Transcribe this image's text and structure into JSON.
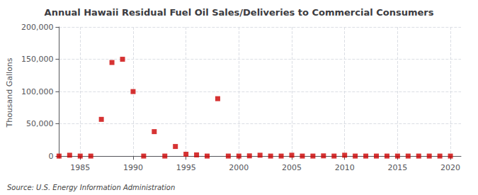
{
  "chart_data": {
    "type": "scatter",
    "title": "Annual Hawaii Residual Fuel Oil Sales/Deliveries to Commercial Consumers",
    "ylabel": "Thousand Gallons",
    "annotation": "Source: U.S. Energy Information Administration",
    "x": [
      1983,
      1984,
      1985,
      1986,
      1987,
      1988,
      1989,
      1990,
      1991,
      1992,
      1993,
      1994,
      1995,
      1996,
      1997,
      1998,
      1999,
      2000,
      2001,
      2002,
      2003,
      2004,
      2005,
      2006,
      2007,
      2008,
      2009,
      2010,
      2011,
      2012,
      2013,
      2014,
      2015,
      2016,
      2017,
      2018,
      2019,
      2020
    ],
    "values": [
      200,
      1500,
      200,
      200,
      57000,
      145000,
      150000,
      100000,
      200,
      38000,
      200,
      15000,
      3000,
      2000,
      200,
      89000,
      200,
      200,
      500,
      1500,
      200,
      200,
      1500,
      200,
      200,
      500,
      200,
      1500,
      200,
      200,
      200,
      200,
      200,
      200,
      200,
      200,
      200,
      200
    ],
    "color": "#cc0000",
    "marker": "square",
    "xlim": [
      1983,
      2021
    ],
    "xticks": [
      1985,
      1990,
      1995,
      2000,
      2005,
      2010,
      2015,
      2020
    ],
    "ylim": [
      -3000,
      200000
    ],
    "yticks": [
      0,
      {
        "value": 50000,
        "label": "50,000"
      },
      {
        "value": 100000,
        "label": "100,000"
      },
      {
        "value": 150000,
        "label": "150,000"
      },
      {
        "value": 200000,
        "label": "200,000"
      }
    ],
    "grid": true
  }
}
